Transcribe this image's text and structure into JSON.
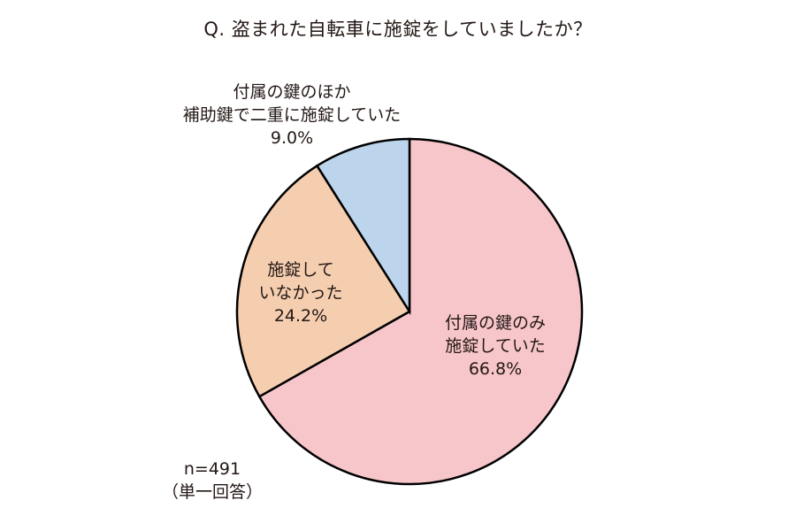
{
  "title": "Q. 盗まれた自転車に施錠をしていましたか？",
  "note": {
    "sample": "n=491",
    "type": "（単一回答）"
  },
  "labels": {
    "pink": {
      "line1": "付属の鍵のみ",
      "line2": "施錠していた",
      "value": "66.8%"
    },
    "orange": {
      "line1": "施錠して",
      "line2": "いなかった",
      "value": "24.2%"
    },
    "blue": {
      "line1": "付属の鍵のほか",
      "line2": "補助鍵で二重に施錠していた",
      "value": "9.0%"
    }
  },
  "colors": {
    "pink": "#f7c6ca",
    "orange": "#f5ceb0",
    "blue": "#bcd5ec",
    "outline": "#000000"
  },
  "chart_data": {
    "type": "pie",
    "title": "Q. 盗まれた自転車に施錠をしていましたか？",
    "categories": [
      "付属の鍵のみ施錠していた",
      "施錠していなかった",
      "付属の鍵のほか補助鍵で二重に施錠していた"
    ],
    "values": [
      66.8,
      24.2,
      9.0
    ],
    "unit": "%",
    "start_angle": "12 o'clock, clockwise",
    "annotations": [
      "n=491",
      "（単一回答）"
    ],
    "legend": "none (direct labels)"
  }
}
